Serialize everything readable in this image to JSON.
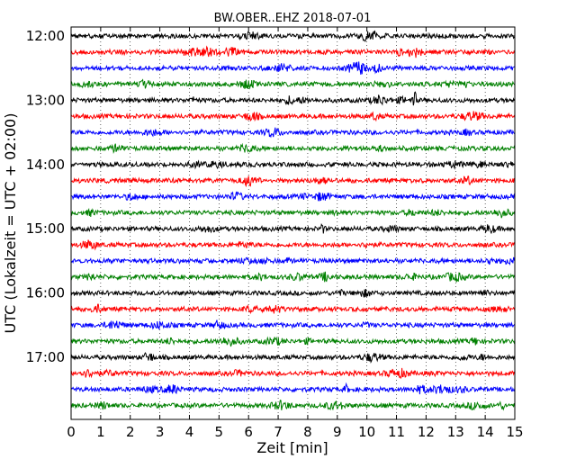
{
  "chart_data": {
    "type": "line",
    "title": "BW.OBER..EHZ 2018-07-01",
    "xlabel": "Zeit  [min]",
    "ylabel": "UTC (Lokalzeit = UTC + 02:00)",
    "xlim": [
      0,
      15
    ],
    "x_ticks": [
      "0",
      "1",
      "2",
      "3",
      "4",
      "5",
      "6",
      "7",
      "8",
      "9",
      "10",
      "11",
      "12",
      "13",
      "14",
      "15"
    ],
    "grid": "vertical dotted",
    "trace_colors": [
      "#000000",
      "#ff0000",
      "#0000ff",
      "#008000"
    ],
    "hour_labels": [
      {
        "label": "12:00",
        "row": 0
      },
      {
        "label": "13:00",
        "row": 4
      },
      {
        "label": "14:00",
        "row": 8
      },
      {
        "label": "15:00",
        "row": 12
      },
      {
        "label": "16:00",
        "row": 16
      },
      {
        "label": "17:00",
        "row": 20
      }
    ],
    "series": [
      {
        "start": "12:00"
      },
      {
        "start": "12:15"
      },
      {
        "start": "12:30"
      },
      {
        "start": "12:45"
      },
      {
        "start": "13:00"
      },
      {
        "start": "13:15"
      },
      {
        "start": "13:30"
      },
      {
        "start": "13:45"
      },
      {
        "start": "14:00"
      },
      {
        "start": "14:15"
      },
      {
        "start": "14:30"
      },
      {
        "start": "14:45"
      },
      {
        "start": "15:00"
      },
      {
        "start": "15:15"
      },
      {
        "start": "15:30"
      },
      {
        "start": "15:45"
      },
      {
        "start": "16:00"
      },
      {
        "start": "16:15"
      },
      {
        "start": "16:30"
      },
      {
        "start": "16:45"
      },
      {
        "start": "17:00"
      },
      {
        "start": "17:15"
      },
      {
        "start": "17:30"
      },
      {
        "start": "17:45"
      }
    ],
    "events": [
      {
        "row": 4,
        "x": 11.6,
        "amplitude": "large"
      },
      {
        "row": 22,
        "x": 9.3,
        "amplitude": "medium"
      },
      {
        "row": 12,
        "x": 8.5,
        "amplitude": "medium"
      },
      {
        "row": 14,
        "x": 7.3,
        "amplitude": "medium"
      },
      {
        "row": 21,
        "x": 12.3,
        "amplitude": "small"
      }
    ]
  }
}
